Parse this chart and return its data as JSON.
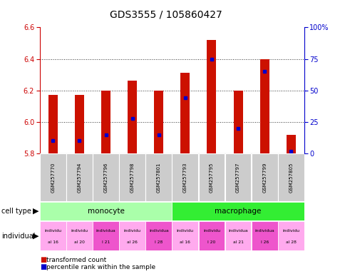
{
  "title": "GDS3555 / 105860427",
  "samples": [
    "GSM257770",
    "GSM257794",
    "GSM257796",
    "GSM257798",
    "GSM257801",
    "GSM257793",
    "GSM257795",
    "GSM257797",
    "GSM257799",
    "GSM257805"
  ],
  "bar_bottom": 5.8,
  "transformed_counts": [
    6.17,
    6.17,
    6.2,
    6.26,
    6.2,
    6.31,
    6.52,
    6.2,
    6.4,
    5.92
  ],
  "percentile_ranks": [
    10,
    10,
    15,
    28,
    15,
    44,
    75,
    20,
    65,
    2
  ],
  "ylim": [
    5.8,
    6.6
  ],
  "yticks": [
    5.8,
    6.0,
    6.2,
    6.4,
    6.6
  ],
  "right_yticks": [
    0,
    25,
    50,
    75,
    100
  ],
  "right_ytick_labels": [
    "0",
    "25",
    "50",
    "75",
    "100%"
  ],
  "monocyte_color": "#AAFFAA",
  "macrophage_color": "#33EE33",
  "ind_colors": [
    "#FFAAEE",
    "#FFAAEE",
    "#EE55CC",
    "#FFAAEE",
    "#EE55CC",
    "#FFAAEE",
    "#EE55CC",
    "#FFAAEE",
    "#EE55CC",
    "#FFAAEE"
  ],
  "ind_line1": [
    "individu",
    "individu",
    "individua",
    "individu",
    "individua",
    "individu",
    "individu",
    "individua",
    "individua",
    "individu"
  ],
  "ind_line2": [
    "al 16",
    "al 20",
    "l 21",
    "al 26",
    "l 28",
    "al 16",
    "l 20",
    "al 21",
    "l 26",
    "al 28"
  ],
  "bar_color": "#CC1100",
  "blue_color": "#0000CC",
  "bar_width": 0.35,
  "ylim_left": [
    5.8,
    6.6
  ],
  "title_fontsize": 10,
  "tick_fontsize": 7,
  "left_axis_color": "#CC0000",
  "right_axis_color": "#0000CC",
  "sample_bg": "#CCCCCC",
  "grid_color": "#333333"
}
